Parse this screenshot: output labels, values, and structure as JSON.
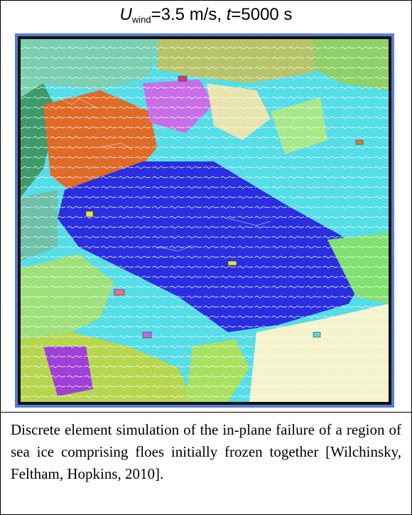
{
  "figure": {
    "title": {
      "u": "U",
      "sub": "wind",
      "mid": "=3.5 m/s, ",
      "t": "t",
      "end": "=5000 s"
    },
    "caption": "Discrete element simulation of the in-plane failure of a region of sea ice comprising floes initially frozen together [Wilchinsky, Feltham, Hopkins, 2010]."
  }
}
